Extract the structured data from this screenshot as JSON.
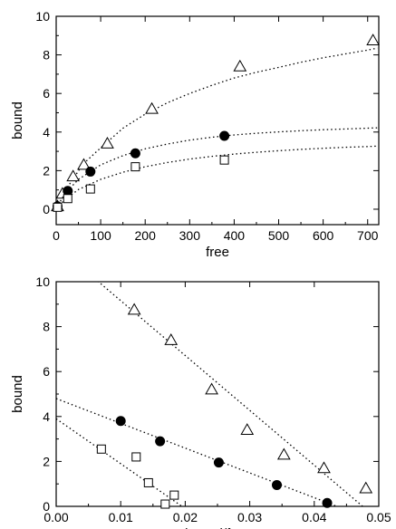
{
  "chart_data": [
    {
      "type": "scatter",
      "xlabel": "free",
      "ylabel": "bound",
      "xlim": [
        0,
        725
      ],
      "ylim": [
        -0.8,
        10
      ],
      "xticks": [
        0,
        100,
        200,
        300,
        400,
        500,
        600,
        700
      ],
      "yticks": [
        0,
        2,
        4,
        6,
        8,
        10
      ],
      "grid": false,
      "series": [
        {
          "marker": "triangle-open",
          "points": [
            [
              3,
              0.15
            ],
            [
              14,
              0.8
            ],
            [
              38,
              1.7
            ],
            [
              62,
              2.3
            ],
            [
              115,
              3.4
            ],
            [
              215,
              5.2
            ],
            [
              413,
              7.4
            ],
            [
              712,
              8.75
            ]
          ],
          "fit": [
            [
              20,
              0.95
            ],
            [
              60,
              2.33
            ],
            [
              100,
              3.18
            ],
            [
              150,
              4.2
            ],
            [
              200,
              4.93
            ],
            [
              250,
              5.52
            ],
            [
              300,
              6.0
            ],
            [
              350,
              6.42
            ],
            [
              400,
              6.8
            ],
            [
              450,
              7.1
            ],
            [
              500,
              7.35
            ],
            [
              550,
              7.62
            ],
            [
              600,
              7.85
            ],
            [
              650,
              8.05
            ],
            [
              700,
              8.25
            ],
            [
              722,
              8.35
            ]
          ]
        },
        {
          "marker": "circle-filled",
          "points": [
            [
              3,
              0.15
            ],
            [
              26,
              0.95
            ],
            [
              77,
              1.95
            ],
            [
              178,
              2.9
            ],
            [
              378,
              3.8
            ]
          ],
          "fit": [
            [
              0,
              0.05
            ],
            [
              20,
              0.82
            ],
            [
              50,
              1.55
            ],
            [
              100,
              2.3
            ],
            [
              150,
              2.78
            ],
            [
              200,
              3.13
            ],
            [
              250,
              3.38
            ],
            [
              300,
              3.58
            ],
            [
              350,
              3.73
            ],
            [
              400,
              3.85
            ],
            [
              450,
              3.94
            ],
            [
              500,
              4.01
            ],
            [
              550,
              4.07
            ],
            [
              600,
              4.12
            ],
            [
              650,
              4.16
            ],
            [
              700,
              4.2
            ],
            [
              722,
              4.22
            ]
          ]
        },
        {
          "marker": "square-open",
          "points": [
            [
              3,
              0.1
            ],
            [
              26,
              0.55
            ],
            [
              77,
              1.05
            ],
            [
              178,
              2.2
            ],
            [
              378,
              2.55
            ]
          ],
          "fit": [
            [
              0,
              0.05
            ],
            [
              20,
              0.5
            ],
            [
              50,
              1.02
            ],
            [
              100,
              1.55
            ],
            [
              150,
              1.92
            ],
            [
              200,
              2.2
            ],
            [
              250,
              2.42
            ],
            [
              300,
              2.6
            ],
            [
              350,
              2.74
            ],
            [
              400,
              2.86
            ],
            [
              450,
              2.95
            ],
            [
              500,
              3.03
            ],
            [
              550,
              3.1
            ],
            [
              600,
              3.16
            ],
            [
              650,
              3.21
            ],
            [
              700,
              3.25
            ],
            [
              722,
              3.27
            ]
          ]
        }
      ]
    },
    {
      "type": "scatter",
      "xlabel": "bound/free",
      "ylabel": "bound",
      "xlim": [
        0,
        0.05
      ],
      "ylim": [
        0,
        10
      ],
      "xticks": [
        "0.00",
        "0.01",
        "0.02",
        "0.03",
        "0.04",
        "0.05"
      ],
      "yticks": [
        0,
        2,
        4,
        6,
        8,
        10
      ],
      "grid": false,
      "series": [
        {
          "marker": "triangle-open",
          "points": [
            [
              0.0121,
              8.75
            ],
            [
              0.0178,
              7.4
            ],
            [
              0.0241,
              5.2
            ],
            [
              0.0296,
              3.4
            ],
            [
              0.0353,
              2.3
            ],
            [
              0.0415,
              1.7
            ],
            [
              0.048,
              0.8
            ]
          ],
          "fit": [
            [
              0.0045,
              10.5
            ],
            [
              0.0475,
              0
            ]
          ]
        },
        {
          "marker": "circle-filled",
          "points": [
            [
              0.01,
              3.8
            ],
            [
              0.0161,
              2.9
            ],
            [
              0.0252,
              1.95
            ],
            [
              0.0342,
              0.95
            ],
            [
              0.042,
              0.15
            ]
          ],
          "fit": [
            [
              0.0,
              4.8
            ],
            [
              0.0435,
              0
            ]
          ]
        },
        {
          "marker": "square-open",
          "points": [
            [
              0.007,
              2.55
            ],
            [
              0.0124,
              2.2
            ],
            [
              0.0143,
              1.05
            ],
            [
              0.0169,
              0.1
            ],
            [
              0.0183,
              0.5
            ]
          ],
          "fit": [
            [
              0.0,
              3.9
            ],
            [
              0.0195,
              0
            ]
          ]
        }
      ]
    }
  ]
}
